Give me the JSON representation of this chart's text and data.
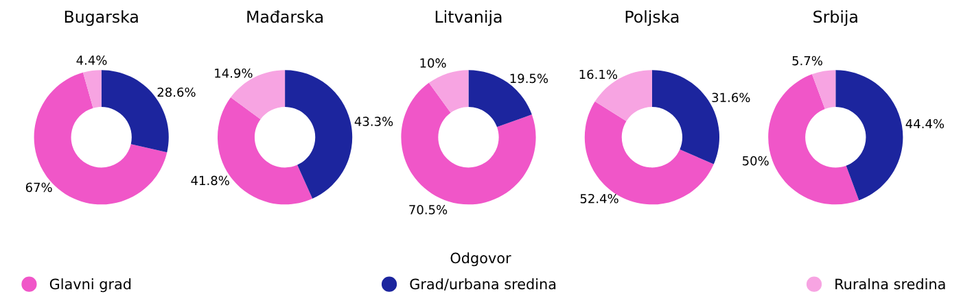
{
  "chart_data": [
    {
      "type": "donut",
      "title": "Bugarska",
      "categories": [
        "Glavni grad",
        "Grad/urbana sredina",
        "Ruralna sredina"
      ],
      "values": [
        67,
        28.6,
        4.4
      ],
      "value_labels": [
        "67%",
        "28.6%",
        "4.4%"
      ],
      "colors": [
        "#f056c8",
        "#1c259e",
        "#f7a4e2"
      ],
      "legend": "bottom",
      "legend_title": "Odgovor"
    },
    {
      "type": "donut",
      "title": "Mađarska",
      "values": [
        41.8,
        43.3,
        14.9
      ],
      "value_labels": [
        "41.8%",
        "43.3%",
        "14.9%"
      ],
      "colors": [
        "#f056c8",
        "#1c259e",
        "#f7a4e2"
      ]
    },
    {
      "type": "donut",
      "title": "Litvanija",
      "values": [
        70.5,
        19.5,
        10
      ],
      "value_labels": [
        "70.5%",
        "19.5%",
        "10%"
      ],
      "colors": [
        "#f056c8",
        "#1c259e",
        "#f7a4e2"
      ]
    },
    {
      "type": "donut",
      "title": "Poljska",
      "values": [
        52.4,
        31.6,
        16.1
      ],
      "value_labels": [
        "52.4%",
        "31.6%",
        "16.1%"
      ],
      "colors": [
        "#f056c8",
        "#1c259e",
        "#f7a4e2"
      ]
    },
    {
      "type": "donut",
      "title": "Srbija",
      "values": [
        50,
        44.4,
        5.7
      ],
      "value_labels": [
        "50%",
        "44.4%",
        "5.7%"
      ],
      "colors": [
        "#f056c8",
        "#1c259e",
        "#f7a4e2"
      ]
    }
  ]
}
